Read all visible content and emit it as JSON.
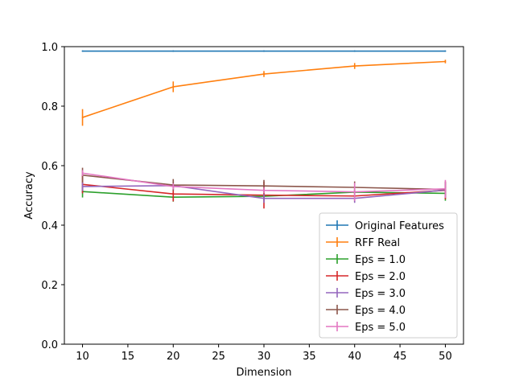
{
  "chart_data": {
    "type": "line",
    "title": "",
    "xlabel": "Dimension",
    "ylabel": "Accuracy",
    "xlim": [
      8,
      52
    ],
    "ylim": [
      0.0,
      1.0
    ],
    "xticks": [
      10,
      15,
      20,
      25,
      30,
      35,
      40,
      45,
      50
    ],
    "xtick_labels": [
      "10",
      "15",
      "20",
      "25",
      "30",
      "35",
      "40",
      "45",
      "50"
    ],
    "yticks": [
      0.0,
      0.2,
      0.4,
      0.6,
      0.8,
      1.0
    ],
    "ytick_labels": [
      "0.0",
      "0.2",
      "0.4",
      "0.6",
      "0.8",
      "1.0"
    ],
    "grid": false,
    "legend_position": "lower-right",
    "x": [
      10,
      20,
      30,
      40,
      50
    ],
    "series": [
      {
        "name": "Original Features",
        "color": "#1f77b4",
        "values": [
          0.985,
          0.985,
          0.985,
          0.985,
          0.985
        ],
        "errors": [
          0.002,
          0.002,
          0.002,
          0.002,
          0.002
        ]
      },
      {
        "name": "RFF Real",
        "color": "#ff7f0e",
        "values": [
          0.762,
          0.865,
          0.908,
          0.935,
          0.95
        ],
        "errors": [
          0.028,
          0.018,
          0.01,
          0.01,
          0.006
        ]
      },
      {
        "name": "Eps = 1.0",
        "color": "#2ca02c",
        "values": [
          0.513,
          0.494,
          0.497,
          0.511,
          0.507
        ],
        "errors": [
          0.02,
          0.015,
          0.012,
          0.01,
          0.025
        ]
      },
      {
        "name": "Eps = 2.0",
        "color": "#d62728",
        "values": [
          0.537,
          0.505,
          0.501,
          0.498,
          0.517
        ],
        "errors": [
          0.03,
          0.025,
          0.045,
          0.02,
          0.03
        ]
      },
      {
        "name": "Eps = 3.0",
        "color": "#9467bd",
        "values": [
          0.53,
          0.533,
          0.49,
          0.49,
          0.518
        ],
        "errors": [
          0.015,
          0.015,
          0.015,
          0.015,
          0.025
        ]
      },
      {
        "name": "Eps = 4.0",
        "color": "#8c564b",
        "values": [
          0.568,
          0.535,
          0.532,
          0.527,
          0.52
        ],
        "errors": [
          0.025,
          0.02,
          0.02,
          0.02,
          0.025
        ]
      },
      {
        "name": "Eps = 5.0",
        "color": "#e377c2",
        "values": [
          0.575,
          0.53,
          0.517,
          0.512,
          0.522
        ],
        "errors": [
          0.01,
          0.01,
          0.01,
          0.03,
          0.03
        ]
      }
    ]
  }
}
